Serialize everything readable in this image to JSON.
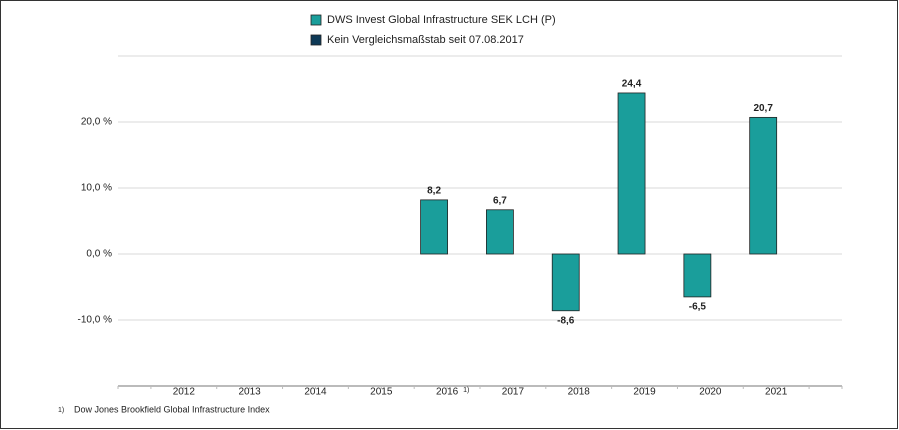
{
  "chart_data": {
    "type": "bar",
    "categories": [
      "2012",
      "2013",
      "2014",
      "2015",
      "2016",
      "2017",
      "2018",
      "2019",
      "2020",
      "2021"
    ],
    "series": [
      {
        "name": "DWS Invest Global Infrastructure  SEK LCH (P)",
        "color": "#1a9e9b",
        "values": [
          null,
          null,
          null,
          null,
          8.2,
          6.7,
          -8.6,
          24.4,
          -6.5,
          20.7
        ],
        "value_labels": [
          null,
          null,
          null,
          null,
          "8,2",
          "6,7",
          "-8,6",
          "24,4",
          "-6,5",
          "20,7"
        ]
      },
      {
        "name": "Kein Vergleichsmaßstab seit 07.08.2017",
        "color": "#0e3a57",
        "values": [
          null,
          null,
          null,
          null,
          null,
          null,
          null,
          null,
          null,
          null
        ]
      }
    ],
    "ylim": [
      -20,
      30
    ],
    "yticks": [
      {
        "value": -10,
        "label": "-10,0 %"
      },
      {
        "value": 0,
        "label": "0,0 %"
      },
      {
        "value": 10,
        "label": "10,0 %"
      },
      {
        "value": 20,
        "label": "20,0 %"
      }
    ],
    "grid": true,
    "legend": "top",
    "footnote": {
      "marker": "1)",
      "text": "Dow Jones Brookfield Global Infrastructure Index"
    }
  }
}
